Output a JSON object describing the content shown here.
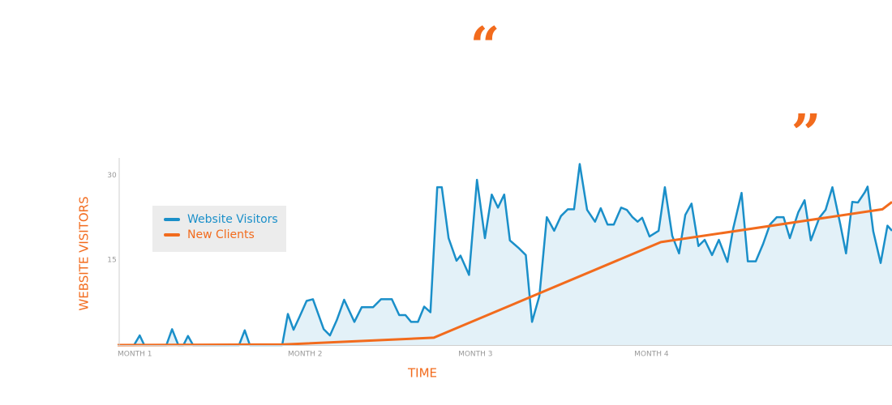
{
  "chart_data": {
    "type": "line",
    "quote_open": "“",
    "quote_close": "”",
    "y_label": "WEBSITE VISITORS",
    "x_label": "TIME",
    "xlim": [
      0,
      136.4
    ],
    "xticks": [
      {
        "value": 0,
        "label": "MONTH 1"
      },
      {
        "value": 30,
        "label": "MONTH 2"
      },
      {
        "value": 60,
        "label": "MONTH 3"
      },
      {
        "value": 91,
        "label": "MONTH 4"
      }
    ],
    "ylim": [
      0,
      33
    ],
    "yticks": [
      15,
      30
    ],
    "grid": false,
    "legend": "upper left",
    "series": [
      {
        "name": "Website Visitors",
        "color": "#1a8fc9",
        "area": true,
        "x": [
          0,
          2.9,
          3.9,
          4.7,
          8.6,
          9.6,
          10.7,
          11.6,
          12.4,
          13.3,
          21.4,
          22.4,
          23.3,
          29,
          30,
          31,
          32.1,
          33.3,
          34.4,
          36.3,
          37.4,
          38.6,
          39.9,
          41.7,
          43,
          45,
          46.4,
          48.3,
          49.6,
          50.7,
          51.7,
          52.9,
          54,
          55.1,
          56.3,
          57.1,
          58.3,
          59.7,
          60.4,
          61.9,
          63.3,
          64.7,
          65.9,
          67,
          68.1,
          69.1,
          70.6,
          71.9,
          73,
          74.3,
          75.6,
          76.9,
          78.1,
          79.3,
          80.4,
          81.4,
          82.7,
          84.1,
          85.1,
          86.3,
          87.4,
          88.7,
          89.7,
          90.7,
          91.6,
          92.4,
          93.7,
          95.3,
          96.4,
          97.7,
          98.9,
          100,
          101.1,
          102.3,
          103.4,
          104.7,
          105.9,
          107.4,
          108.4,
          109.9,
          111,
          112.4,
          113.7,
          114.9,
          116.1,
          117.3,
          118.4,
          119.9,
          121,
          122.1,
          123.6,
          124.7,
          125.9,
          127.3,
          128.3,
          129.4,
          130.4,
          131.6,
          132.1,
          133.1,
          134.4,
          135.6,
          136.4
        ],
        "values": [
          0,
          0,
          1.7,
          0,
          0,
          2.8,
          0,
          0,
          1.6,
          0,
          0,
          2.6,
          0,
          0,
          5.5,
          2.7,
          5.1,
          7.8,
          8.1,
          2.8,
          1.7,
          4.4,
          8,
          4.1,
          6.7,
          6.7,
          8.1,
          8.1,
          5.3,
          5.3,
          4.1,
          4.1,
          6.8,
          5.8,
          27.9,
          27.9,
          18.9,
          14.9,
          15.8,
          12.4,
          29.2,
          18.9,
          26.6,
          24.3,
          26.6,
          18.5,
          17.2,
          15.9,
          4.1,
          8.7,
          22.6,
          20.2,
          22.8,
          24,
          24,
          32,
          23.9,
          21.8,
          24.2,
          21.3,
          21.3,
          24.3,
          23.9,
          22.6,
          21.8,
          22.5,
          19.2,
          20.2,
          27.9,
          19.3,
          16.2,
          23,
          25,
          17.5,
          18.6,
          15.9,
          18.6,
          14.7,
          20.5,
          26.9,
          14.8,
          14.8,
          17.9,
          21.3,
          22.6,
          22.6,
          18.9,
          23.5,
          25.6,
          18.5,
          22.5,
          23.9,
          27.9,
          21.3,
          16.2,
          25.3,
          25.2,
          27,
          28,
          20.1,
          14.5,
          21.1,
          20.2
        ]
      },
      {
        "name": "New Clients",
        "color": "#f26b1d",
        "area": false,
        "x": [
          0,
          29.3,
          55.7,
          95.7,
          134.7,
          136.4
        ],
        "values": [
          0,
          0.1,
          1.3,
          18.2,
          24,
          25.3
        ]
      }
    ]
  }
}
